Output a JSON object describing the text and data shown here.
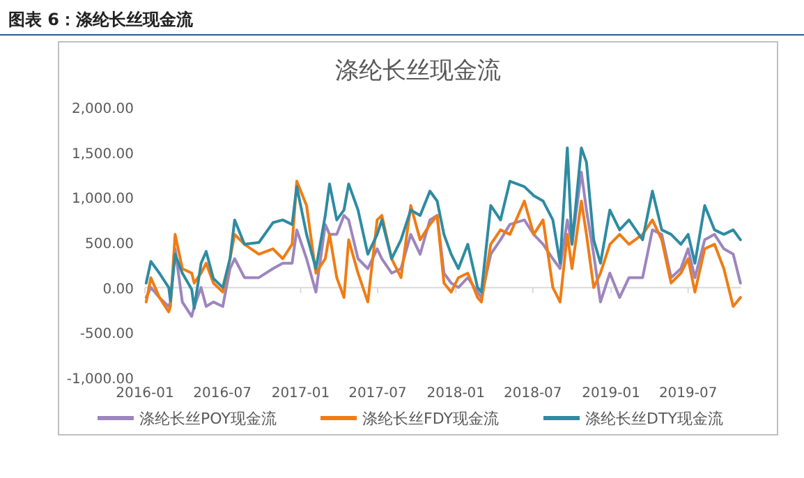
{
  "chart_data": {
    "type": "line",
    "title": "涤纶长丝现金流",
    "annotations": [
      "图表 6：涤纶长丝现金流"
    ],
    "x": [
      "2016-01-04",
      "2016-01-15",
      "2016-02-04",
      "2016-02-26",
      "2016-03-01",
      "2016-03-12",
      "2016-03-29",
      "2016-04-20",
      "2016-04-26",
      "2016-05-12",
      "2016-05-24",
      "2016-06-10",
      "2016-07-02",
      "2016-07-19",
      "2016-07-30",
      "2016-08-22",
      "2016-09-25",
      "2016-10-28",
      "2016-11-20",
      "2016-12-12",
      "2016-12-23",
      "2017-01-15",
      "2017-02-06",
      "2017-02-28",
      "2017-03-10",
      "2017-03-27",
      "2017-04-13",
      "2017-04-24",
      "2017-05-16",
      "2017-06-08",
      "2017-06-30",
      "2017-07-11",
      "2017-08-03",
      "2017-08-25",
      "2017-09-17",
      "2017-10-09",
      "2017-11-01",
      "2017-11-18",
      "2017-12-04",
      "2017-12-21",
      "2018-01-07",
      "2018-01-29",
      "2018-02-21",
      "2018-03-02",
      "2018-03-24",
      "2018-04-16",
      "2018-05-08",
      "2018-06-11",
      "2018-07-03",
      "2018-07-25",
      "2018-08-17",
      "2018-09-03",
      "2018-09-20",
      "2018-10-01",
      "2018-10-23",
      "2018-11-04",
      "2018-11-21",
      "2018-12-07",
      "2018-12-29",
      "2019-01-21",
      "2019-02-12",
      "2019-03-16",
      "2019-04-08",
      "2019-04-30",
      "2019-05-22",
      "2019-06-14",
      "2019-07-01",
      "2019-07-17",
      "2019-08-09",
      "2019-09-01",
      "2019-09-23",
      "2019-10-15",
      "2019-11-01"
    ],
    "series": [
      {
        "name": "涤纶长丝POY现金流",
        "color": "#9d85be",
        "values": [
          -110,
          0,
          -110,
          -210,
          -160,
          430,
          -160,
          -320,
          -210,
          0,
          -210,
          -160,
          -210,
          210,
          320,
          110,
          110,
          210,
          270,
          270,
          640,
          320,
          -50,
          700,
          590,
          590,
          800,
          750,
          320,
          210,
          430,
          320,
          160,
          210,
          590,
          370,
          750,
          800,
          160,
          50,
          0,
          110,
          -50,
          -110,
          370,
          530,
          700,
          750,
          590,
          480,
          320,
          210,
          750,
          480,
          1280,
          860,
          370,
          -160,
          160,
          -110,
          110,
          110,
          640,
          590,
          110,
          210,
          430,
          110,
          530,
          590,
          430,
          370,
          50
        ]
      },
      {
        "name": "涤纶长丝FDY现金流",
        "color": "#f07c13",
        "values": [
          -160,
          110,
          -110,
          -270,
          -210,
          590,
          210,
          160,
          50,
          160,
          270,
          50,
          -50,
          320,
          590,
          480,
          370,
          430,
          320,
          480,
          1180,
          910,
          160,
          320,
          590,
          110,
          -110,
          530,
          160,
          -160,
          750,
          800,
          320,
          110,
          910,
          530,
          700,
          800,
          50,
          -50,
          110,
          160,
          -110,
          -160,
          480,
          640,
          590,
          960,
          590,
          750,
          0,
          -160,
          590,
          210,
          960,
          590,
          0,
          160,
          480,
          590,
          480,
          590,
          750,
          530,
          50,
          160,
          320,
          -50,
          430,
          480,
          210,
          -210,
          -110
        ]
      },
      {
        "name": "涤纶长丝DTY现金流",
        "color": "#2e8ba2",
        "values": [
          50,
          290,
          160,
          0,
          -150,
          370,
          160,
          -20,
          -230,
          270,
          400,
          100,
          0,
          320,
          750,
          480,
          500,
          720,
          750,
          700,
          1120,
          590,
          210,
          800,
          1150,
          750,
          860,
          1150,
          860,
          370,
          590,
          750,
          320,
          530,
          860,
          800,
          1070,
          960,
          590,
          370,
          210,
          480,
          0,
          -50,
          910,
          750,
          1180,
          1120,
          1020,
          960,
          750,
          270,
          1550,
          480,
          1550,
          1390,
          530,
          270,
          860,
          640,
          750,
          530,
          1070,
          640,
          590,
          480,
          590,
          270,
          910,
          640,
          590,
          640,
          530
        ]
      }
    ],
    "xlim": [
      "2016-01-01",
      "2019-11-03"
    ],
    "xticks": [
      {
        "value": "2016-01-01",
        "label": "2016-01"
      },
      {
        "value": "2016-07-01",
        "label": "2016-07"
      },
      {
        "value": "2017-01-01",
        "label": "2017-01"
      },
      {
        "value": "2017-07-01",
        "label": "2017-07"
      },
      {
        "value": "2018-01-01",
        "label": "2018-01"
      },
      {
        "value": "2018-07-01",
        "label": "2018-07"
      },
      {
        "value": "2019-01-01",
        "label": "2019-01"
      },
      {
        "value": "2019-07-01",
        "label": "2019-07"
      }
    ],
    "ylim": [
      -1000,
      2000
    ],
    "yticks": [
      {
        "value": -1000,
        "label": "-1,000.00"
      },
      {
        "value": -500,
        "label": "-500.00"
      },
      {
        "value": 0,
        "label": "0.00"
      },
      {
        "value": 500,
        "label": "500.00"
      },
      {
        "value": 1000,
        "label": "1,000.00"
      },
      {
        "value": 1500,
        "label": "1,500.00"
      },
      {
        "value": 2000,
        "label": "2,000.00"
      }
    ],
    "legend": "bottom"
  }
}
